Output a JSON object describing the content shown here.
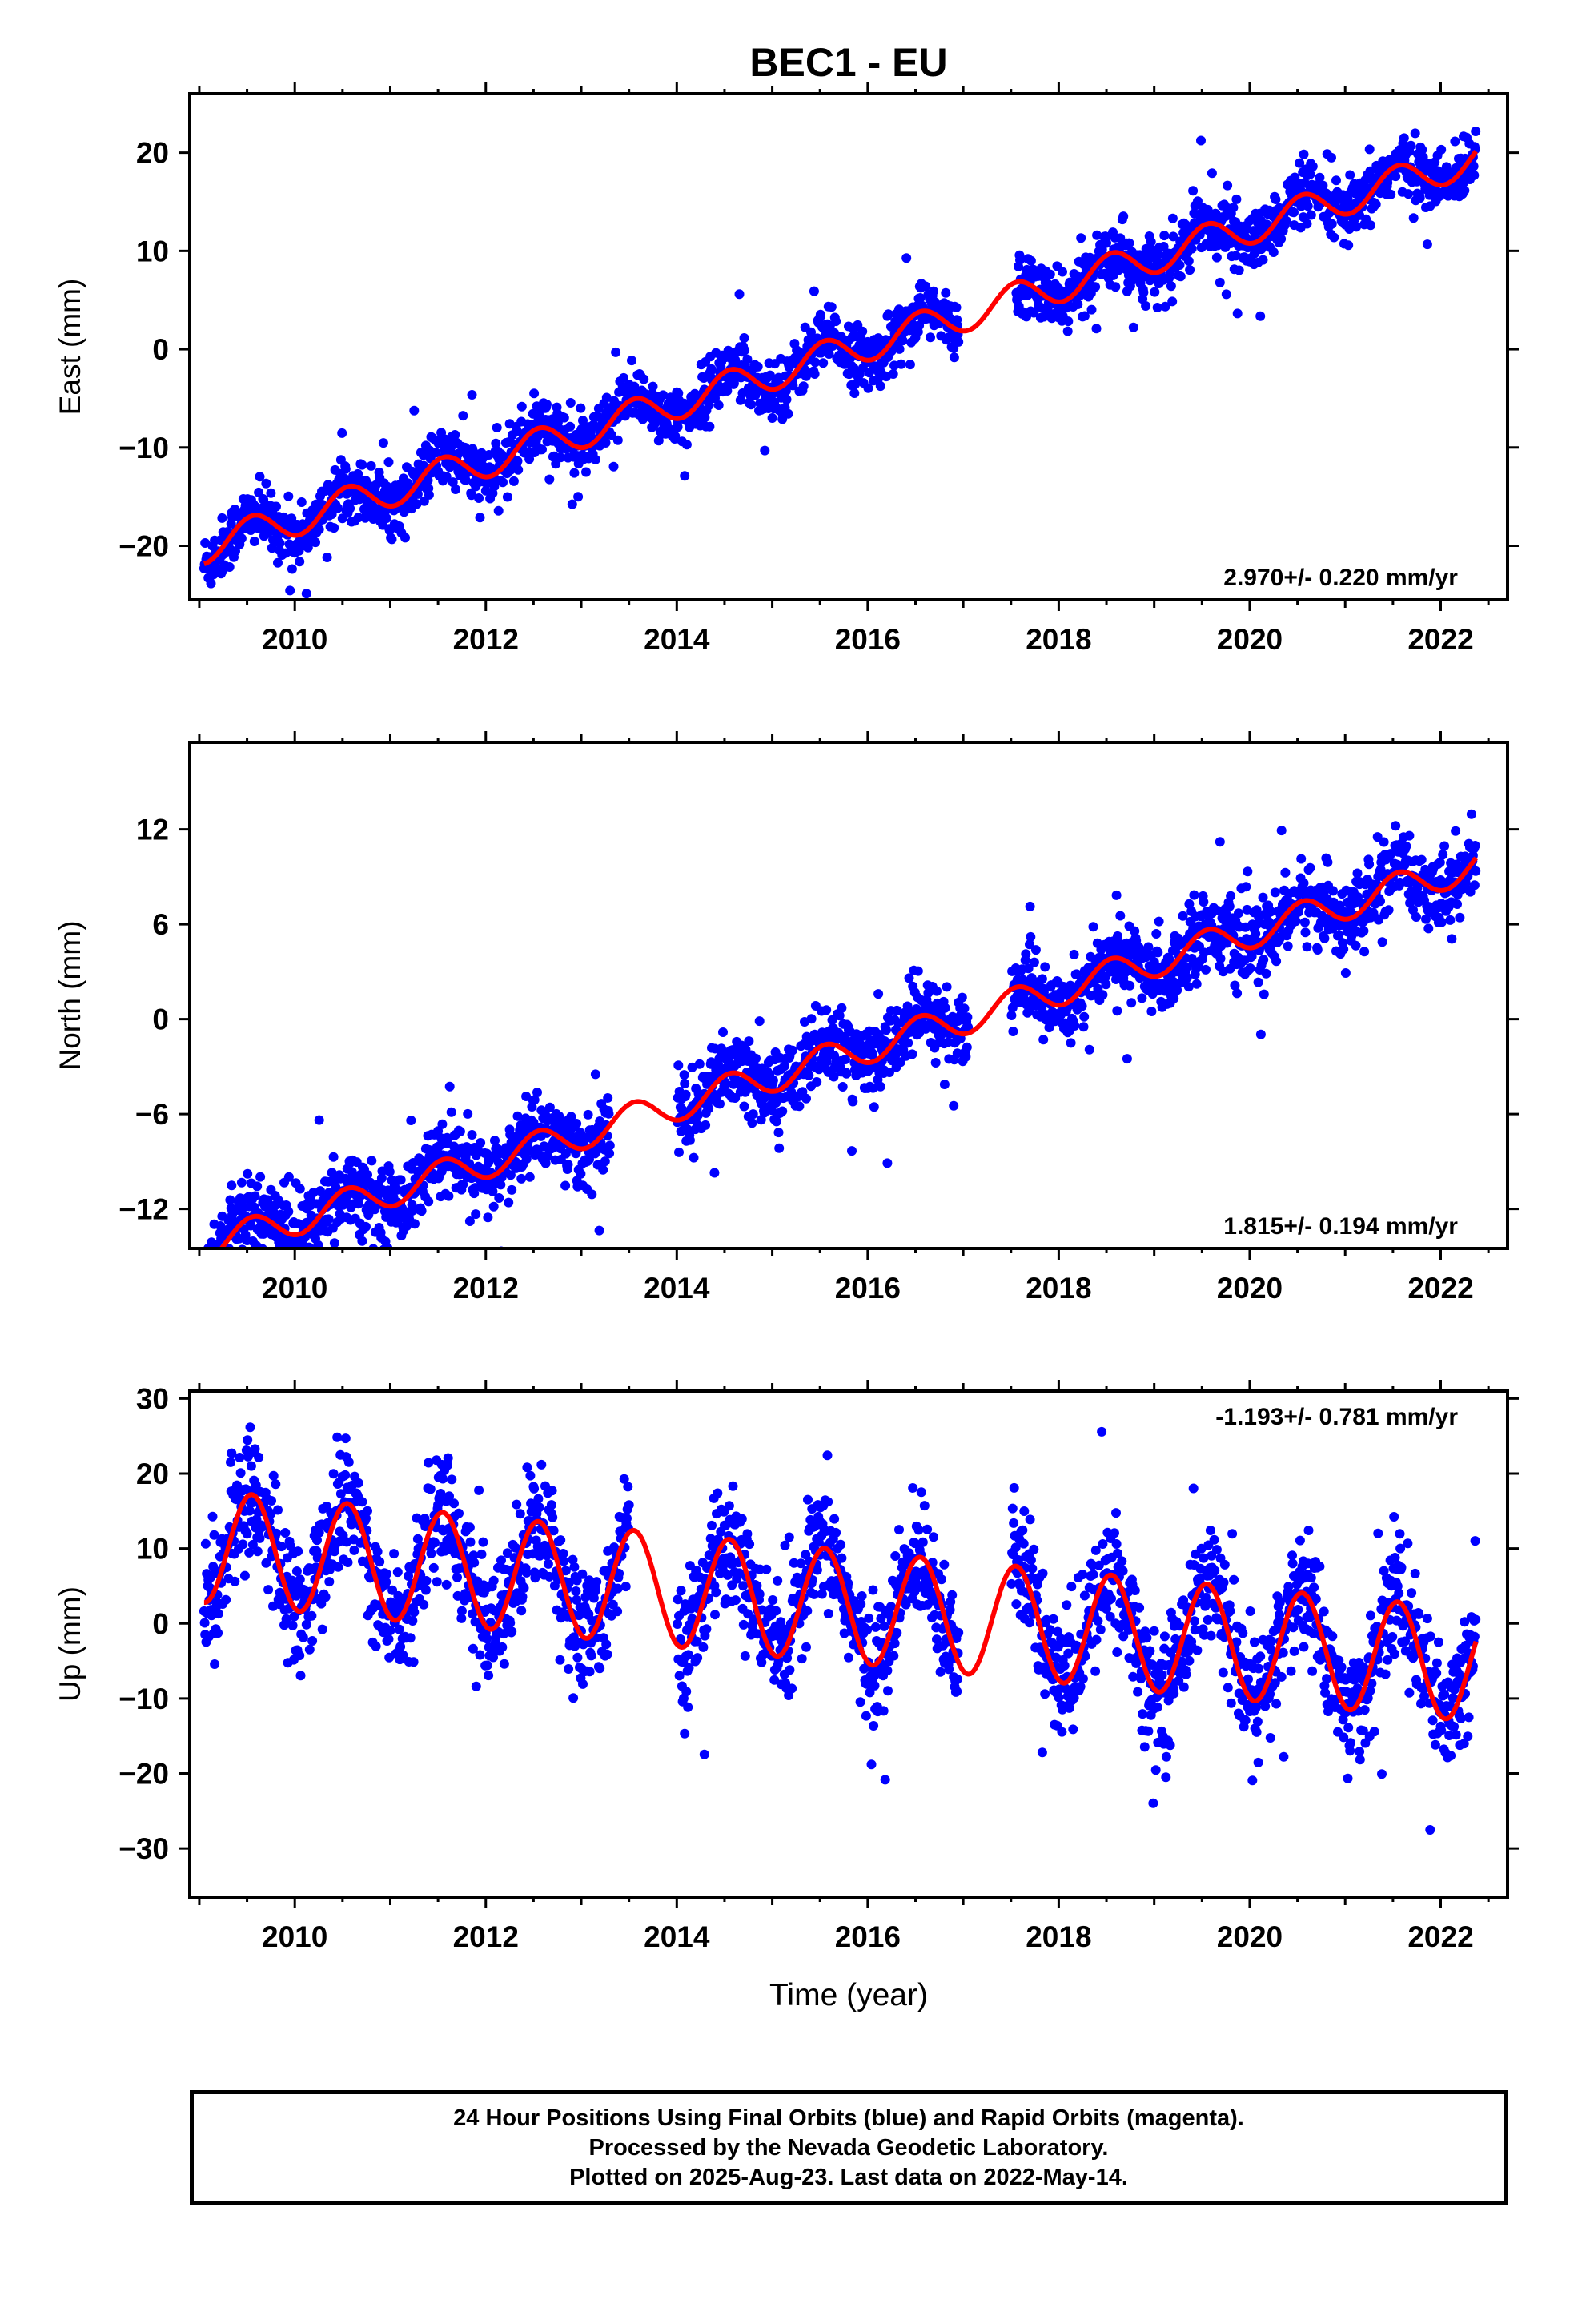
{
  "title": "BEC1 - EU",
  "footer": {
    "line1": "24 Hour Positions Using Final Orbits (blue) and Rapid Orbits (magenta).",
    "line2": "Processed by the Nevada Geodetic Laboratory.",
    "line3": "Plotted on 2025-Aug-23. Last data on 2022-May-14."
  },
  "colors": {
    "observations": "#0000ff",
    "model": "#ff0000",
    "axes": "#000000"
  },
  "chart_data": [
    {
      "type": "scatter",
      "ylabel": "East (mm)",
      "xlabel": "",
      "xlim": [
        2008.9,
        2022.7
      ],
      "ylim": [
        -25.5,
        26
      ],
      "xticks": [
        2010,
        2012,
        2014,
        2016,
        2018,
        2020,
        2022
      ],
      "yticks": [
        -20,
        -10,
        0,
        10,
        20
      ],
      "velocity_label": "2.970+/- 0.220 mm/yr",
      "label_position": "bottom-right",
      "series": [
        {
          "role": "observations",
          "x_start": 2009.05,
          "x_end": 2022.37,
          "slope": 2.97,
          "intercept": 0.5,
          "annual_amp": 1.7,
          "noise": 1.5,
          "gaps": [
            [
              2016.95,
              2017.55
            ]
          ]
        },
        {
          "role": "model",
          "x_start": 2009.05,
          "x_end": 2022.37,
          "slope": 2.97,
          "intercept": 0.5,
          "annual_amp": 1.7
        }
      ]
    },
    {
      "type": "scatter",
      "ylabel": "North (mm)",
      "xlabel": "",
      "xlim": [
        2008.9,
        2022.7
      ],
      "ylim": [
        -14.5,
        17.5
      ],
      "xticks": [
        2010,
        2012,
        2014,
        2016,
        2018,
        2020,
        2022
      ],
      "yticks": [
        -12,
        -6,
        0,
        6,
        12
      ],
      "velocity_label": "1.815+/- 0.194 mm/yr",
      "label_position": "bottom-right",
      "series": [
        {
          "role": "observations",
          "x_start": 2009.05,
          "x_end": 2022.37,
          "slope": 1.815,
          "intercept": -1.8,
          "annual_amp": 1.0,
          "noise": 1.2,
          "gaps": [
            [
              2013.3,
              2014.0
            ],
            [
              2017.05,
              2017.5
            ]
          ]
        },
        {
          "role": "model",
          "x_start": 2009.05,
          "x_end": 2022.37,
          "slope": 1.815,
          "intercept": -1.8,
          "annual_amp": 1.0
        }
      ]
    },
    {
      "type": "scatter",
      "ylabel": "Up (mm)",
      "xlabel": "Time (year)",
      "xlim": [
        2008.9,
        2022.7
      ],
      "ylim": [
        -36.5,
        31
      ],
      "xticks": [
        2010,
        2012,
        2014,
        2016,
        2018,
        2020,
        2022
      ],
      "yticks": [
        -30,
        -20,
        -10,
        0,
        10,
        20,
        30
      ],
      "velocity_label": "-1.193+/- 0.781 mm/yr",
      "label_position": "top-right",
      "series": [
        {
          "role": "observations",
          "x_start": 2009.05,
          "x_end": 2022.37,
          "slope": -1.193,
          "intercept": 2.0,
          "annual_amp": 7.5,
          "noise": 4.0,
          "gaps": [
            [
              2013.5,
              2014.0
            ],
            [
              2016.95,
              2017.5
            ]
          ]
        },
        {
          "role": "model",
          "x_start": 2009.05,
          "x_end": 2022.37,
          "slope": -1.193,
          "intercept": 2.0,
          "annual_amp": 7.5
        }
      ]
    }
  ]
}
